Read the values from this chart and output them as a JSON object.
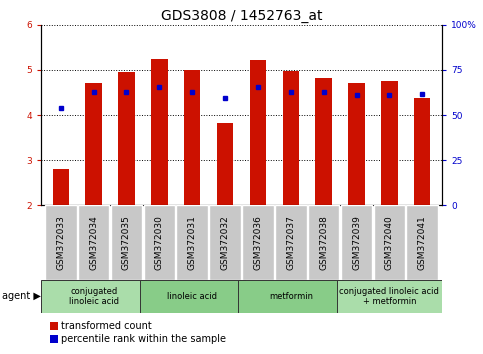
{
  "title": "GDS3808 / 1452763_at",
  "samples": [
    "GSM372033",
    "GSM372034",
    "GSM372035",
    "GSM372030",
    "GSM372031",
    "GSM372032",
    "GSM372036",
    "GSM372037",
    "GSM372038",
    "GSM372039",
    "GSM372040",
    "GSM372041"
  ],
  "red_values": [
    2.8,
    4.7,
    4.95,
    5.25,
    5.0,
    3.83,
    5.22,
    4.97,
    4.83,
    4.72,
    4.75,
    4.38
  ],
  "blue_values": [
    4.15,
    4.52,
    4.52,
    4.62,
    4.52,
    4.38,
    4.62,
    4.52,
    4.52,
    4.45,
    4.45,
    4.47
  ],
  "red_color": "#cc1100",
  "blue_color": "#0000cc",
  "ylim_left": [
    2,
    6
  ],
  "ylim_right": [
    0,
    100
  ],
  "yticks_left": [
    2,
    3,
    4,
    5,
    6
  ],
  "yticks_right": [
    0,
    25,
    50,
    75,
    100
  ],
  "yticklabels_right": [
    "0",
    "25",
    "50",
    "75",
    "100%"
  ],
  "agents": [
    {
      "label": "conjugated\nlinoleic acid",
      "start": 0,
      "end": 3,
      "color": "#aaddaa"
    },
    {
      "label": "linoleic acid",
      "start": 3,
      "end": 6,
      "color": "#88cc88"
    },
    {
      "label": "metformin",
      "start": 6,
      "end": 9,
      "color": "#88cc88"
    },
    {
      "label": "conjugated linoleic acid\n+ metformin",
      "start": 9,
      "end": 12,
      "color": "#aaddaa"
    }
  ],
  "agent_label": "agent",
  "legend_red": "transformed count",
  "legend_blue": "percentile rank within the sample",
  "bar_width": 0.5,
  "base_value": 2.0,
  "tick_bg": "#c8c8c8",
  "title_fontsize": 10,
  "tick_fontsize": 6.5,
  "label_fontsize": 7
}
